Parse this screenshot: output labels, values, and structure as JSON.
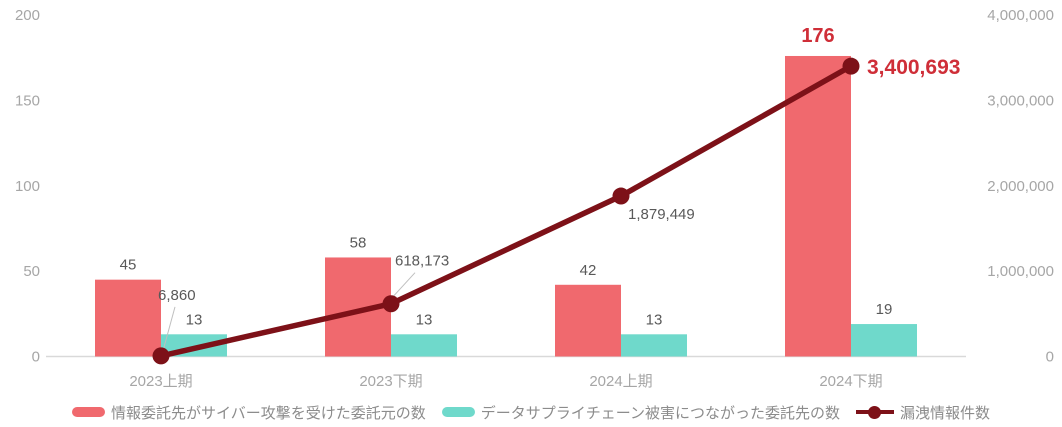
{
  "chart_data": {
    "type": "combo-bar-line",
    "title": "",
    "categories": [
      "2023上期",
      "2023下期",
      "2024上期",
      "2024下期"
    ],
    "series": [
      {
        "name": "情報委託先がサイバー攻撃を受けた委託元の数",
        "type": "bar",
        "axis": "left",
        "color": "#F0696E",
        "values": [
          45,
          58,
          42,
          176
        ],
        "labels": [
          "45",
          "58",
          "42",
          "176"
        ]
      },
      {
        "name": "データサプライチェーン被害につながった委託先の数",
        "type": "bar",
        "axis": "left",
        "color": "#6FD9CB",
        "values": [
          13,
          13,
          13,
          19
        ],
        "labels": [
          "13",
          "13",
          "13",
          "19"
        ]
      },
      {
        "name": "漏洩情報件数",
        "type": "line",
        "axis": "right",
        "color": "#7D1118",
        "values": [
          6860,
          618173,
          1879449,
          3400693
        ],
        "labels": [
          "6,860",
          "618,173",
          "1,879,449",
          "3,400,693"
        ]
      }
    ],
    "left_axis": {
      "min": 0,
      "max": 200,
      "ticks": [
        "200",
        "150",
        "100",
        "50",
        "0"
      ]
    },
    "right_axis": {
      "min": 0,
      "max": 4000000,
      "ticks": [
        "4,000,000",
        "3,000,000",
        "2,000,000",
        "1,000,000",
        "0"
      ]
    },
    "emphasis": {
      "category_index": 3,
      "color": "#CF2E38"
    },
    "grid": false,
    "legend_position": "bottom",
    "colors": {
      "data_label": "#595959",
      "axis_label": "#A6A6A6",
      "baseline": "#D9D9D9",
      "leader_line": "#BFBFBF"
    }
  }
}
